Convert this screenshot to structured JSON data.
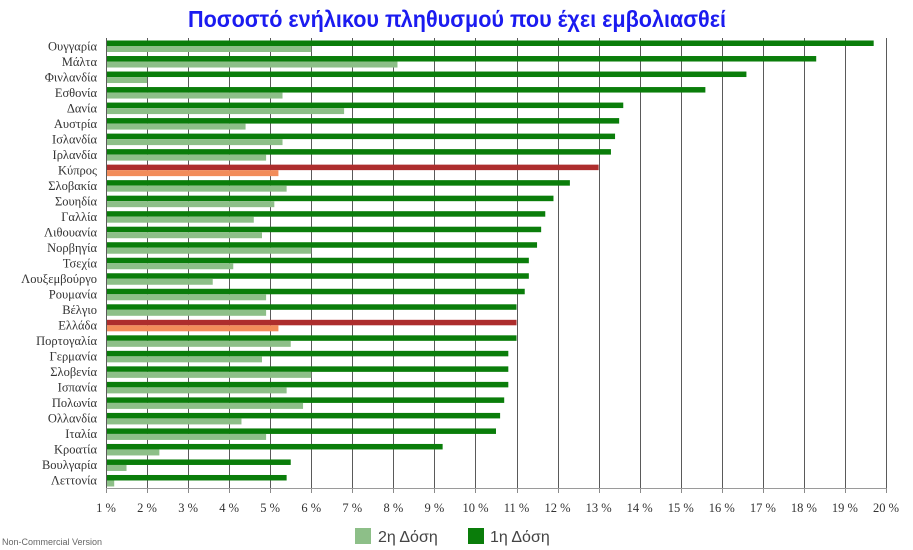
{
  "chart_data": {
    "type": "bar",
    "orientation": "horizontal",
    "title": "Ποσοστό ενήλικου πληθυσμού που έχει εμβολιασθεί",
    "title_color": "#1b1bf0",
    "categories": [
      "Ουγγαρία",
      "Μάλτα",
      "Φινλανδία",
      "Εσθονία",
      "Δανία",
      "Αυστρία",
      "Ισλανδία",
      "Ιρλανδία",
      "Κύπρος",
      "Σλοβακία",
      "Σουηδία",
      "Γαλλία",
      "Λιθουανία",
      "Νορβηγία",
      "Τσεχία",
      "Λουξεμβούργο",
      "Ρουμανία",
      "Βέλγιο",
      "Ελλάδα",
      "Πορτογαλία",
      "Γερμανία",
      "Σλοβενία",
      "Ισπανία",
      "Πολωνία",
      "Ολλανδία",
      "Ιταλία",
      "Κροατία",
      "Βουλγαρία",
      "Λεττονία"
    ],
    "series": [
      {
        "name": "2η Δόση",
        "color": "#8dbf88",
        "highlight_color": "#f28c5a",
        "values": [
          6.0,
          8.1,
          2.0,
          5.3,
          6.8,
          4.4,
          5.3,
          4.9,
          5.2,
          5.4,
          5.1,
          4.6,
          4.8,
          6.0,
          4.1,
          3.6,
          4.9,
          4.9,
          5.2,
          5.5,
          4.8,
          6.0,
          5.4,
          5.8,
          4.3,
          4.9,
          2.3,
          1.5,
          1.2
        ]
      },
      {
        "name": "1η Δόση",
        "color": "#0a7d0a",
        "highlight_color": "#ad2d2d",
        "values": [
          19.7,
          18.3,
          16.6,
          15.6,
          13.6,
          13.5,
          13.4,
          13.3,
          13.0,
          12.3,
          11.9,
          11.7,
          11.6,
          11.5,
          11.3,
          11.3,
          11.2,
          11.0,
          11.0,
          11.0,
          10.8,
          10.8,
          10.8,
          10.7,
          10.6,
          10.5,
          9.2,
          5.5,
          5.4
        ]
      }
    ],
    "highlight_indices": [
      8,
      18
    ],
    "xlim": [
      1,
      20
    ],
    "xticks": [
      1,
      2,
      3,
      4,
      5,
      6,
      7,
      8,
      9,
      10,
      11,
      12,
      13,
      14,
      15,
      16,
      17,
      18,
      19,
      20
    ],
    "xtick_labels": [
      "1 %",
      "2 %",
      "3 %",
      "4 %",
      "5 %",
      "6 %",
      "7 %",
      "8 %",
      "9 %",
      "10 %",
      "11 %",
      "12 %",
      "13 %",
      "14 %",
      "15 %",
      "16 %",
      "17 %",
      "18 %",
      "19 %",
      "20 %"
    ],
    "grid": true,
    "legend": {
      "position": "bottom-center"
    }
  },
  "footer": {
    "watermark": "Non-Commercial Version"
  }
}
